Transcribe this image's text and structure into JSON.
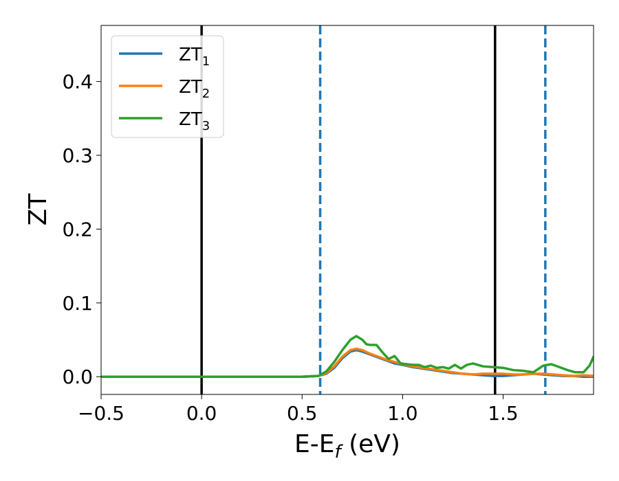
{
  "chart_data": {
    "type": "line",
    "xlabel_main": "E-E",
    "xlabel_sub": "f",
    "xlabel_unit": " (eV)",
    "ylabel": "ZT",
    "xlim": [
      -0.5,
      1.95
    ],
    "ylim": [
      -0.024,
      0.476
    ],
    "xticks": [
      {
        "value": -0.5,
        "label": "−0.5"
      },
      {
        "value": 0.0,
        "label": "0.0"
      },
      {
        "value": 0.5,
        "label": "0.5"
      },
      {
        "value": 1.0,
        "label": "1.0"
      },
      {
        "value": 1.5,
        "label": "1.5"
      }
    ],
    "yticks": [
      {
        "value": 0.0,
        "label": "0.0"
      },
      {
        "value": 0.1,
        "label": "0.1"
      },
      {
        "value": 0.2,
        "label": "0.2"
      },
      {
        "value": 0.3,
        "label": "0.3"
      },
      {
        "value": 0.4,
        "label": "0.4"
      }
    ],
    "grid": false,
    "legend_position": "top-left",
    "vlines": [
      {
        "x": 0.0,
        "style": "solid",
        "color": "#000000"
      },
      {
        "x": 1.46,
        "style": "solid",
        "color": "#000000"
      },
      {
        "x": 0.59,
        "style": "dashed",
        "color": "#1f77b4"
      },
      {
        "x": 1.71,
        "style": "dashed",
        "color": "#1f77b4"
      }
    ],
    "series": [
      {
        "name": "ZT",
        "sub": "1",
        "color": "#1f77b4",
        "points": [
          [
            -0.5,
            0
          ],
          [
            0.5,
            0
          ],
          [
            0.58,
            0.001
          ],
          [
            0.62,
            0.004
          ],
          [
            0.66,
            0.012
          ],
          [
            0.7,
            0.025
          ],
          [
            0.74,
            0.034
          ],
          [
            0.77,
            0.036
          ],
          [
            0.8,
            0.034
          ],
          [
            0.84,
            0.03
          ],
          [
            0.88,
            0.026
          ],
          [
            0.92,
            0.022
          ],
          [
            0.96,
            0.018
          ],
          [
            1.0,
            0.016
          ],
          [
            1.05,
            0.013
          ],
          [
            1.1,
            0.011
          ],
          [
            1.15,
            0.009
          ],
          [
            1.2,
            0.007
          ],
          [
            1.25,
            0.005
          ],
          [
            1.3,
            0.004
          ],
          [
            1.35,
            0.003
          ],
          [
            1.4,
            0.002
          ],
          [
            1.45,
            0.001
          ],
          [
            1.5,
            0.001
          ],
          [
            1.55,
            0.002
          ],
          [
            1.6,
            0.003
          ],
          [
            1.65,
            0.004
          ],
          [
            1.7,
            0.003
          ],
          [
            1.75,
            0.002
          ],
          [
            1.8,
            0.001
          ],
          [
            1.85,
            0.001
          ],
          [
            1.9,
            0.0
          ],
          [
            1.95,
            0.0
          ]
        ]
      },
      {
        "name": "ZT",
        "sub": "2",
        "color": "#ff7f0e",
        "points": [
          [
            -0.5,
            0
          ],
          [
            0.5,
            0
          ],
          [
            0.58,
            0.001
          ],
          [
            0.62,
            0.005
          ],
          [
            0.66,
            0.014
          ],
          [
            0.7,
            0.027
          ],
          [
            0.74,
            0.036
          ],
          [
            0.77,
            0.038
          ],
          [
            0.8,
            0.036
          ],
          [
            0.84,
            0.031
          ],
          [
            0.88,
            0.027
          ],
          [
            0.92,
            0.023
          ],
          [
            0.96,
            0.02
          ],
          [
            1.0,
            0.017
          ],
          [
            1.05,
            0.014
          ],
          [
            1.1,
            0.012
          ],
          [
            1.15,
            0.01
          ],
          [
            1.2,
            0.008
          ],
          [
            1.25,
            0.006
          ],
          [
            1.3,
            0.004
          ],
          [
            1.35,
            0.003
          ],
          [
            1.4,
            0.004
          ],
          [
            1.45,
            0.004
          ],
          [
            1.5,
            0.004
          ],
          [
            1.55,
            0.003
          ],
          [
            1.6,
            0.003
          ],
          [
            1.65,
            0.004
          ],
          [
            1.7,
            0.004
          ],
          [
            1.75,
            0.003
          ],
          [
            1.8,
            0.002
          ],
          [
            1.85,
            0.001
          ],
          [
            1.9,
            0.002
          ],
          [
            1.95,
            0.001
          ]
        ]
      },
      {
        "name": "ZT",
        "sub": "3",
        "color": "#2ca02c",
        "points": [
          [
            -0.5,
            0
          ],
          [
            0.5,
            0
          ],
          [
            0.58,
            0.001
          ],
          [
            0.62,
            0.007
          ],
          [
            0.66,
            0.02
          ],
          [
            0.7,
            0.036
          ],
          [
            0.74,
            0.05
          ],
          [
            0.77,
            0.055
          ],
          [
            0.8,
            0.05
          ],
          [
            0.82,
            0.044
          ],
          [
            0.84,
            0.043
          ],
          [
            0.87,
            0.043
          ],
          [
            0.9,
            0.033
          ],
          [
            0.93,
            0.024
          ],
          [
            0.96,
            0.028
          ],
          [
            0.99,
            0.018
          ],
          [
            1.02,
            0.017
          ],
          [
            1.05,
            0.016
          ],
          [
            1.08,
            0.016
          ],
          [
            1.11,
            0.013
          ],
          [
            1.14,
            0.015
          ],
          [
            1.17,
            0.012
          ],
          [
            1.2,
            0.013
          ],
          [
            1.23,
            0.011
          ],
          [
            1.26,
            0.016
          ],
          [
            1.29,
            0.011
          ],
          [
            1.32,
            0.016
          ],
          [
            1.35,
            0.018
          ],
          [
            1.4,
            0.014
          ],
          [
            1.45,
            0.013
          ],
          [
            1.5,
            0.012
          ],
          [
            1.55,
            0.009
          ],
          [
            1.6,
            0.008
          ],
          [
            1.65,
            0.006
          ],
          [
            1.7,
            0.015
          ],
          [
            1.74,
            0.017
          ],
          [
            1.78,
            0.013
          ],
          [
            1.82,
            0.009
          ],
          [
            1.86,
            0.006
          ],
          [
            1.9,
            0.006
          ],
          [
            1.93,
            0.015
          ],
          [
            1.95,
            0.027
          ]
        ]
      }
    ]
  }
}
